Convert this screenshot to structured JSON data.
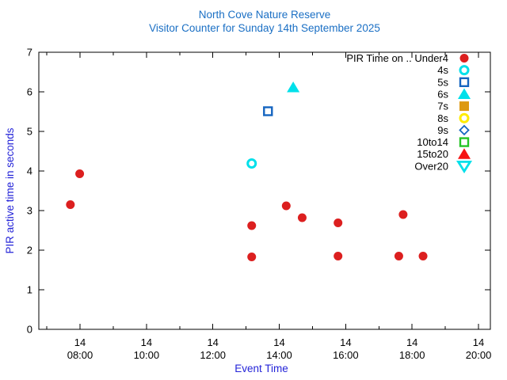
{
  "chart": {
    "window_background": "#ffffff"
  },
  "chart_data": {
    "type": "scatter",
    "title": "North Cove Nature Reserve",
    "subtitle": "Visitor Counter for Sunday 14th September 2025",
    "xlabel": "Event Time",
    "ylabel": "PIR active time in seconds",
    "title_color": "#1a6fc4",
    "axis_label_color": "#2424d8",
    "tick_text_color": "#000000",
    "grid": false,
    "legend_position": "top-right-inside",
    "ylim": [
      0,
      7
    ],
    "y_ticks": [
      0,
      1,
      2,
      3,
      4,
      5,
      6,
      7
    ],
    "x_axis_day": "14",
    "x_ticks": [
      {
        "hour": 8,
        "day": "14",
        "time": "08:00"
      },
      {
        "hour": 10,
        "day": "14",
        "time": "10:00"
      },
      {
        "hour": 12,
        "day": "14",
        "time": "12:00"
      },
      {
        "hour": 14,
        "day": "14",
        "time": "14:00"
      },
      {
        "hour": 16,
        "day": "14",
        "time": "16:00"
      },
      {
        "hour": 18,
        "day": "14",
        "time": "18:00"
      },
      {
        "hour": 20,
        "day": "14",
        "time": "20:00"
      }
    ],
    "x_minor_tick_hours": [
      7,
      9,
      11,
      13,
      15,
      17,
      19
    ],
    "series": [
      {
        "label": "PIR Time on .. Under4",
        "marker": "circle",
        "fill": true,
        "color": "#dc1f1f",
        "points": [
          {
            "time": "07:42",
            "hour": 7.71,
            "seconds": 3.15
          },
          {
            "time": "08:00",
            "hour": 7.99,
            "seconds": 3.93
          },
          {
            "time": "13:10",
            "hour": 13.17,
            "seconds": 2.62
          },
          {
            "time": "13:10",
            "hour": 13.17,
            "seconds": 1.83
          },
          {
            "time": "14:13",
            "hour": 14.21,
            "seconds": 3.12
          },
          {
            "time": "14:41",
            "hour": 14.69,
            "seconds": 2.82
          },
          {
            "time": "15:46",
            "hour": 15.77,
            "seconds": 2.69
          },
          {
            "time": "15:46",
            "hour": 15.77,
            "seconds": 1.85
          },
          {
            "time": "17:36",
            "hour": 17.6,
            "seconds": 1.85
          },
          {
            "time": "17:44",
            "hour": 17.73,
            "seconds": 2.9
          },
          {
            "time": "18:20",
            "hour": 18.33,
            "seconds": 1.85
          }
        ]
      },
      {
        "label": "4s",
        "marker": "circle",
        "fill": false,
        "color": "#00e0ea",
        "points": [
          {
            "time": "13:10",
            "hour": 13.17,
            "seconds": 4.19
          }
        ]
      },
      {
        "label": "5s",
        "marker": "square",
        "fill": false,
        "color": "#1565c0",
        "points": [
          {
            "time": "13:40",
            "hour": 13.66,
            "seconds": 5.51
          }
        ]
      },
      {
        "label": "6s",
        "marker": "triangle-up",
        "fill": true,
        "color": "#00e0ea",
        "points": [
          {
            "time": "14:25",
            "hour": 14.42,
            "seconds": 6.11
          }
        ]
      },
      {
        "label": "7s",
        "marker": "square",
        "fill": true,
        "color": "#dd9911",
        "points": []
      },
      {
        "label": "8s",
        "marker": "circle",
        "fill": false,
        "color": "#ffec00",
        "points": []
      },
      {
        "label": "9s",
        "marker": "diamond",
        "fill": false,
        "color": "#1565c0",
        "points": []
      },
      {
        "label": "10to14",
        "marker": "square",
        "fill": false,
        "color": "#25c425",
        "points": []
      },
      {
        "label": "15to20",
        "marker": "triangle-up",
        "fill": true,
        "color": "#f51414",
        "points": []
      },
      {
        "label": "Over20",
        "marker": "triangle-down",
        "fill": false,
        "color": "#00e0ea",
        "points": []
      }
    ]
  }
}
